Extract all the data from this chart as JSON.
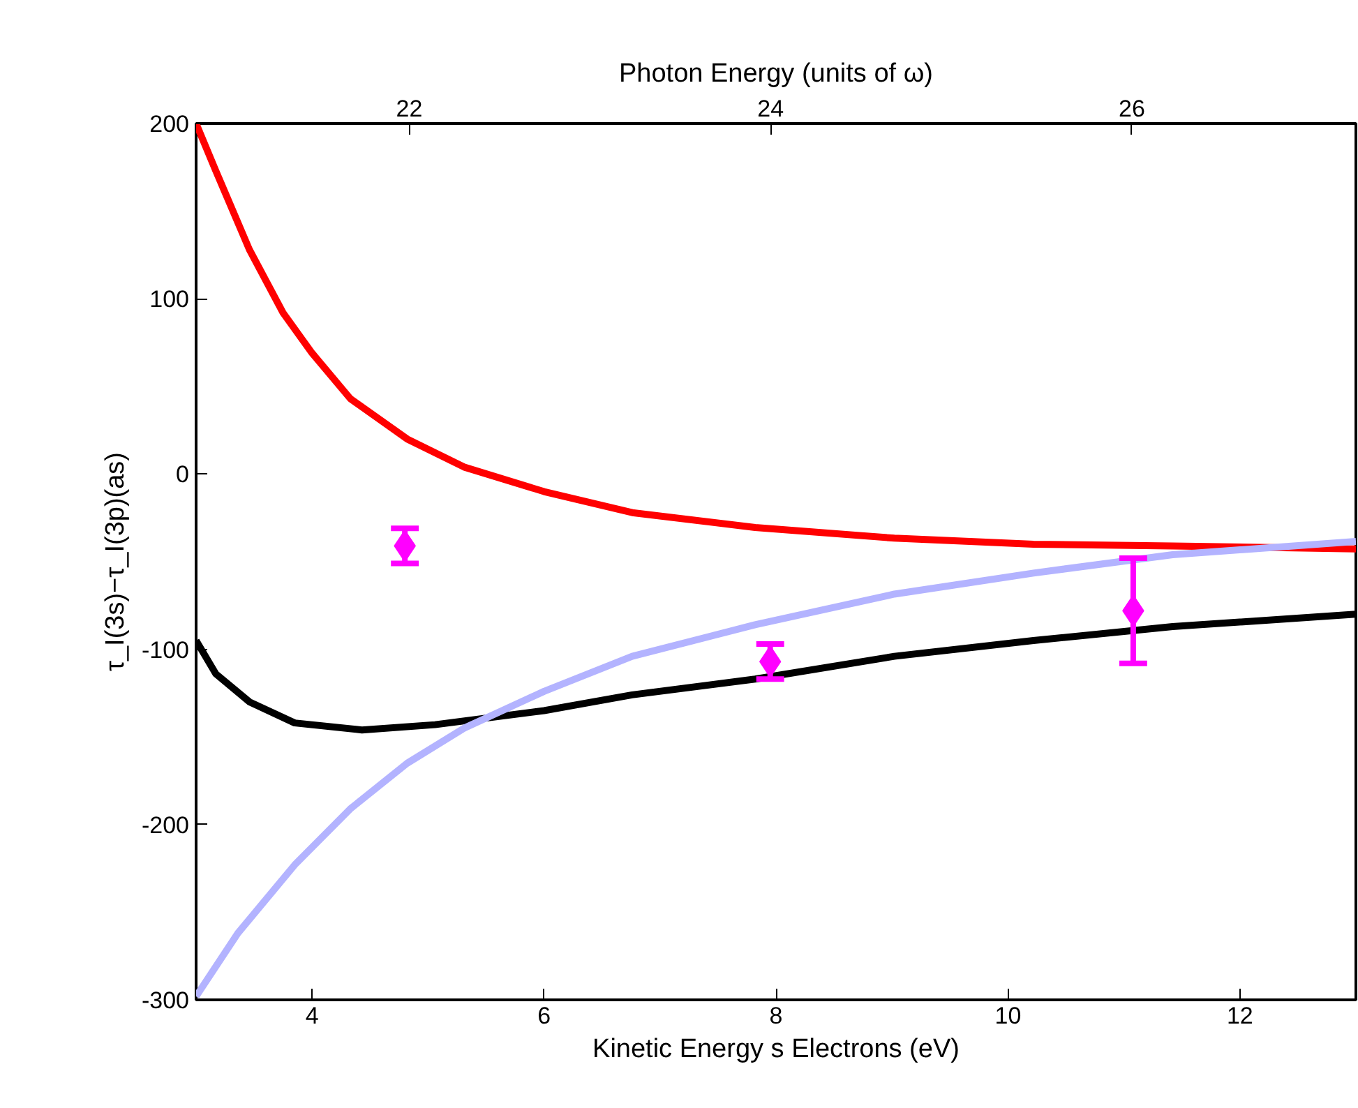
{
  "chart_data": {
    "type": "line",
    "xlabel": "Kinetic Energy s Electrons (eV)",
    "ylabel": "τ_I(3s)−τ_I(3p)(as)",
    "x2label": "Photon Energy (units of ω)",
    "xlim": [
      3,
      13
    ],
    "xticks": [
      4,
      6,
      8,
      10,
      12
    ],
    "ylim": [
      -300,
      200
    ],
    "yticks": [
      -300,
      -200,
      -100,
      0,
      100,
      200
    ],
    "x2lim": [
      20.82,
      27.24
    ],
    "x2ticks": [
      22,
      24,
      26
    ],
    "grid": false,
    "series": [
      {
        "color": "#ff0000",
        "x": [
          3,
          3.17,
          3.46,
          3.75,
          4.0,
          4.33,
          4.82,
          5.31,
          6.0,
          6.76,
          7.82,
          9.02,
          10.22,
          11.42,
          13.0
        ],
        "values": [
          200,
          173,
          128,
          92,
          69,
          43,
          20,
          4,
          -10,
          -22,
          -30.5,
          -36.6,
          -40,
          -41,
          -42.7
        ]
      },
      {
        "color": "#000000",
        "x": [
          3,
          3.17,
          3.46,
          3.85,
          4.43,
          5.06,
          6.0,
          6.76,
          7.82,
          9.02,
          10.22,
          11.42,
          13.0
        ],
        "values": [
          -95,
          -114,
          -130,
          -142,
          -146,
          -143,
          -135,
          -126,
          -117,
          -104,
          -95,
          -87,
          -80
        ]
      },
      {
        "color": "#b3b3ff",
        "x": [
          3,
          3.36,
          3.85,
          4.33,
          4.82,
          5.31,
          6.0,
          6.76,
          7.82,
          9.02,
          10.22,
          11.42,
          13.0
        ],
        "values": [
          -298,
          -262,
          -223,
          -191,
          -165,
          -145,
          -124,
          -104,
          -86,
          -68.5,
          -56.5,
          -46,
          -38.5
        ]
      },
      {
        "type": "scatter",
        "color": "#ff00ff",
        "marker": "diamond",
        "x": [
          4.8,
          7.95,
          11.08
        ],
        "values": [
          -41,
          -107,
          -78
        ],
        "errors": [
          10,
          10,
          30
        ]
      }
    ]
  }
}
